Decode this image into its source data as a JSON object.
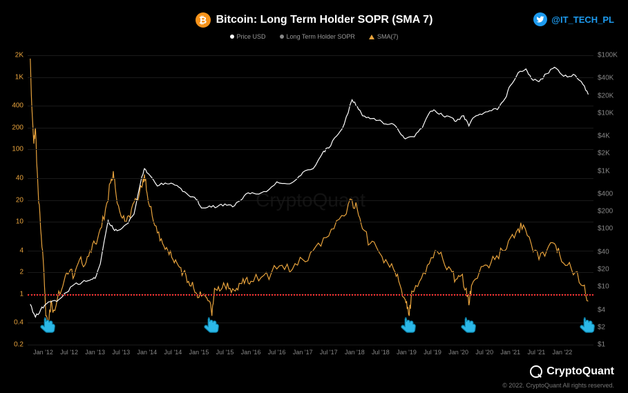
{
  "title": "Bitcoin: Long Term Holder SOPR (SMA 7)",
  "legend": {
    "price": "Price USD",
    "sopr": "Long Term Holder SOPR",
    "sma": "SMA(7)"
  },
  "attribution": "@IT_TECH_PL",
  "watermark": "CryptoQuant",
  "footer_brand": "CryptoQuant",
  "copyright": "© 2022. CryptoQuant All rights reserved.",
  "chart": {
    "background_color": "#000000",
    "grid_color": "#1a1a1a",
    "text_color": "#888888",
    "reference_line": {
      "value": 1,
      "color": "#ff3333",
      "style": "dotted"
    },
    "y_left": {
      "scale": "log",
      "min": 0.2,
      "max": 2000,
      "ticks": [
        0.2,
        0.4,
        1,
        2,
        4,
        10,
        20,
        40,
        100,
        200,
        400,
        "1K",
        "2K"
      ],
      "tick_values": [
        0.2,
        0.4,
        1,
        2,
        4,
        10,
        20,
        40,
        100,
        200,
        400,
        1000,
        2000
      ],
      "color": "#e8a33d"
    },
    "y_right": {
      "scale": "log",
      "min": 1,
      "max": 100000,
      "ticks": [
        "$1",
        "$2",
        "$4",
        "$10",
        "$20",
        "$40",
        "$100",
        "$200",
        "$400",
        "$1K",
        "$2K",
        "$4K",
        "$10K",
        "$20K",
        "$40K",
        "$100K"
      ],
      "tick_values": [
        1,
        2,
        4,
        10,
        20,
        40,
        100,
        200,
        400,
        1000,
        2000,
        4000,
        10000,
        20000,
        40000,
        100000
      ],
      "color": "#ffffff"
    },
    "x": {
      "min": 2011.7,
      "max": 2022.6,
      "ticks": [
        "Jan '12",
        "Jul '12",
        "Jan '13",
        "Jul '13",
        "Jan '14",
        "Jul '14",
        "Jan '15",
        "Jul '15",
        "Jan '16",
        "Jul '16",
        "Jan '17",
        "Jul '17",
        "Jan '18",
        "Jul '18",
        "Jan '19",
        "Jul '19",
        "Jan '20",
        "Jul '20",
        "Jan '21",
        "Jul '21",
        "Jan '22"
      ],
      "tick_values": [
        2012.0,
        2012.5,
        2013.0,
        2013.5,
        2014.0,
        2014.5,
        2015.0,
        2015.5,
        2016.0,
        2016.5,
        2017.0,
        2017.5,
        2018.0,
        2018.5,
        2019.0,
        2019.5,
        2020.0,
        2020.5,
        2021.0,
        2021.5,
        2022.0
      ]
    },
    "series": {
      "price": {
        "color": "#ffffff",
        "width": 1.2,
        "points": [
          [
            2011.75,
            5
          ],
          [
            2011.85,
            3
          ],
          [
            2011.95,
            4
          ],
          [
            2012.05,
            5
          ],
          [
            2012.15,
            5.5
          ],
          [
            2012.3,
            6
          ],
          [
            2012.45,
            8
          ],
          [
            2012.6,
            11
          ],
          [
            2012.75,
            12
          ],
          [
            2012.9,
            13
          ],
          [
            2013.0,
            14
          ],
          [
            2013.1,
            25
          ],
          [
            2013.25,
            140
          ],
          [
            2013.35,
            100
          ],
          [
            2013.45,
            95
          ],
          [
            2013.6,
            120
          ],
          [
            2013.75,
            180
          ],
          [
            2013.9,
            800
          ],
          [
            2013.95,
            1100
          ],
          [
            2014.05,
            850
          ],
          [
            2014.2,
            550
          ],
          [
            2014.35,
            620
          ],
          [
            2014.5,
            600
          ],
          [
            2014.65,
            500
          ],
          [
            2014.8,
            380
          ],
          [
            2014.95,
            320
          ],
          [
            2015.05,
            230
          ],
          [
            2015.2,
            250
          ],
          [
            2015.35,
            240
          ],
          [
            2015.5,
            270
          ],
          [
            2015.65,
            240
          ],
          [
            2015.8,
            310
          ],
          [
            2015.95,
            420
          ],
          [
            2016.1,
            400
          ],
          [
            2016.3,
            440
          ],
          [
            2016.5,
            650
          ],
          [
            2016.7,
            600
          ],
          [
            2016.9,
            750
          ],
          [
            2017.0,
            950
          ],
          [
            2017.2,
            1100
          ],
          [
            2017.4,
            2200
          ],
          [
            2017.5,
            2500
          ],
          [
            2017.65,
            4000
          ],
          [
            2017.8,
            6500
          ],
          [
            2017.95,
            17000
          ],
          [
            2018.05,
            13000
          ],
          [
            2018.15,
            9000
          ],
          [
            2018.3,
            8000
          ],
          [
            2018.45,
            7500
          ],
          [
            2018.6,
            6500
          ],
          [
            2018.75,
            6400
          ],
          [
            2018.9,
            4200
          ],
          [
            2019.0,
            3700
          ],
          [
            2019.15,
            3900
          ],
          [
            2019.3,
            5500
          ],
          [
            2019.45,
            10500
          ],
          [
            2019.55,
            11000
          ],
          [
            2019.7,
            9000
          ],
          [
            2019.85,
            8500
          ],
          [
            2019.95,
            7200
          ],
          [
            2020.1,
            9000
          ],
          [
            2020.2,
            6000
          ],
          [
            2020.3,
            8500
          ],
          [
            2020.45,
            9500
          ],
          [
            2020.6,
            11000
          ],
          [
            2020.75,
            11500
          ],
          [
            2020.9,
            18000
          ],
          [
            2021.0,
            30000
          ],
          [
            2021.15,
            50000
          ],
          [
            2021.3,
            58000
          ],
          [
            2021.4,
            40000
          ],
          [
            2021.55,
            35000
          ],
          [
            2021.7,
            48000
          ],
          [
            2021.85,
            62000
          ],
          [
            2021.95,
            50000
          ],
          [
            2022.1,
            42000
          ],
          [
            2022.25,
            45000
          ],
          [
            2022.4,
            31000
          ],
          [
            2022.5,
            21000
          ]
        ]
      },
      "sma7": {
        "color": "#e8a33d",
        "width": 1.2,
        "points": [
          [
            2011.75,
            1800
          ],
          [
            2011.78,
            400
          ],
          [
            2011.82,
            120
          ],
          [
            2011.85,
            200
          ],
          [
            2011.9,
            30
          ],
          [
            2011.95,
            8
          ],
          [
            2012.0,
            3
          ],
          [
            2012.05,
            0.5
          ],
          [
            2012.1,
            0.4
          ],
          [
            2012.15,
            0.8
          ],
          [
            2012.2,
            0.6
          ],
          [
            2012.3,
            1.1
          ],
          [
            2012.4,
            1.5
          ],
          [
            2012.5,
            2
          ],
          [
            2012.6,
            1.8
          ],
          [
            2012.7,
            3
          ],
          [
            2012.8,
            2.5
          ],
          [
            2012.9,
            4
          ],
          [
            2013.0,
            5
          ],
          [
            2013.1,
            8
          ],
          [
            2013.2,
            15
          ],
          [
            2013.3,
            35
          ],
          [
            2013.35,
            50
          ],
          [
            2013.4,
            25
          ],
          [
            2013.5,
            12
          ],
          [
            2013.6,
            10
          ],
          [
            2013.7,
            15
          ],
          [
            2013.8,
            20
          ],
          [
            2013.9,
            30
          ],
          [
            2013.95,
            45
          ],
          [
            2014.0,
            25
          ],
          [
            2014.1,
            12
          ],
          [
            2014.2,
            7
          ],
          [
            2014.3,
            5
          ],
          [
            2014.4,
            4
          ],
          [
            2014.5,
            3
          ],
          [
            2014.6,
            2.5
          ],
          [
            2014.7,
            2
          ],
          [
            2014.8,
            1.5
          ],
          [
            2014.9,
            1.2
          ],
          [
            2015.0,
            0.9
          ],
          [
            2015.1,
            1.0
          ],
          [
            2015.2,
            0.8
          ],
          [
            2015.25,
            0.5
          ],
          [
            2015.3,
            1.2
          ],
          [
            2015.4,
            1.1
          ],
          [
            2015.5,
            1.3
          ],
          [
            2015.6,
            1.2
          ],
          [
            2015.7,
            1.1
          ],
          [
            2015.8,
            1.4
          ],
          [
            2015.9,
            1.6
          ],
          [
            2016.0,
            1.5
          ],
          [
            2016.2,
            1.7
          ],
          [
            2016.4,
            2.0
          ],
          [
            2016.6,
            2.5
          ],
          [
            2016.8,
            2.2
          ],
          [
            2017.0,
            3
          ],
          [
            2017.2,
            4
          ],
          [
            2017.4,
            6
          ],
          [
            2017.6,
            8
          ],
          [
            2017.8,
            12
          ],
          [
            2017.95,
            20
          ],
          [
            2018.05,
            15
          ],
          [
            2018.15,
            8
          ],
          [
            2018.3,
            5
          ],
          [
            2018.45,
            4
          ],
          [
            2018.6,
            3
          ],
          [
            2018.75,
            2.2
          ],
          [
            2018.85,
            1.5
          ],
          [
            2018.95,
            0.9
          ],
          [
            2019.0,
            0.8
          ],
          [
            2019.05,
            0.5
          ],
          [
            2019.1,
            1.1
          ],
          [
            2019.25,
            1.5
          ],
          [
            2019.4,
            2.5
          ],
          [
            2019.55,
            4
          ],
          [
            2019.7,
            3
          ],
          [
            2019.85,
            2.2
          ],
          [
            2019.95,
            1.6
          ],
          [
            2020.05,
            1.8
          ],
          [
            2020.15,
            1.2
          ],
          [
            2020.2,
            0.7
          ],
          [
            2020.25,
            1.3
          ],
          [
            2020.4,
            2
          ],
          [
            2020.55,
            2.5
          ],
          [
            2020.7,
            3
          ],
          [
            2020.85,
            4
          ],
          [
            2021.0,
            6
          ],
          [
            2021.15,
            8
          ],
          [
            2021.25,
            9
          ],
          [
            2021.4,
            5
          ],
          [
            2021.55,
            3
          ],
          [
            2021.7,
            4
          ],
          [
            2021.85,
            5
          ],
          [
            2021.95,
            3.5
          ],
          [
            2022.1,
            2.5
          ],
          [
            2022.25,
            2
          ],
          [
            2022.4,
            1.3
          ],
          [
            2022.5,
            0.8
          ]
        ]
      }
    },
    "pointers": {
      "color_fill": "#2bb8e8",
      "color_stroke": "#0a7a9e",
      "x_positions": [
        2012.1,
        2015.25,
        2019.05,
        2020.2,
        2022.5
      ]
    }
  }
}
